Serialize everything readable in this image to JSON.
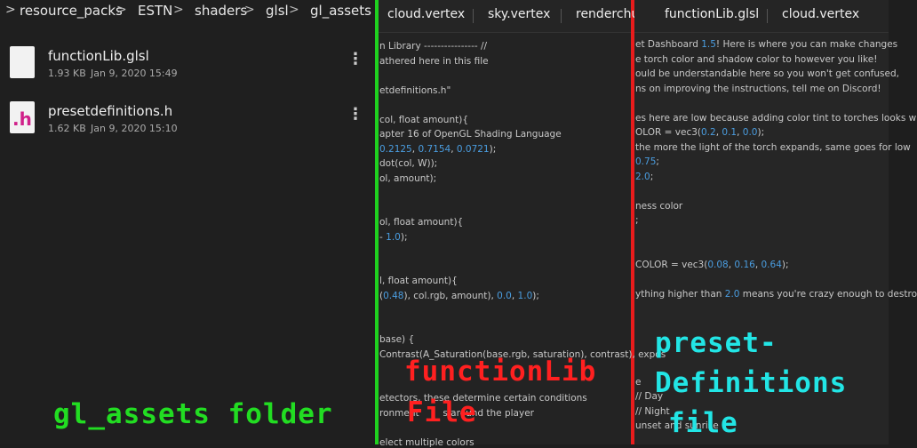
{
  "breadcrumb": [
    "resource_packs",
    "ESTN",
    "shaders",
    "glsl",
    "gl_assets"
  ],
  "files": [
    {
      "name": "functionLib.glsl",
      "size": "1.93 KB",
      "date": "Jan 9, 2020 15:49"
    },
    {
      "name": "presetdefinitions.h",
      "size": "1.62 KB",
      "date": "Jan 9, 2020 15:10",
      "icon": ".h"
    }
  ],
  "editor_middle": {
    "tabs": [
      "cloud.vertex",
      "sky.vertex",
      "renderchu"
    ],
    "lines": [
      "n Library ---------------- //",
      "athered here in this file",
      "etdefinitions.h\"",
      "col, float amount){",
      "apter 16 of OpenGL Shading Language",
      "0.2125, 0.7154, 0.0721);",
      "dot(col, W));",
      "ol, amount);",
      "ol, float amount){",
      "- 1.0);",
      "l, float amount){",
      "(0.48), col.rgb, amount), 0.0, 1.0);",
      "base) {",
      "Contrast(A_Saturation(base.rgb, saturation), contrast), expos",
      "etectors, these determine certain conditions",
      "ronment        s around the player",
      "elect multiple colors"
    ]
  },
  "editor_right": {
    "tabs": [
      "functionLib.glsl",
      "cloud.vertex"
    ],
    "lines": [
      "et Dashboard 1.5! Here is where you can make changes",
      "e torch color and shadow color to however you like!",
      "ould be understandable here so you won't get confused,",
      "ns on improving the instructions, tell me on Discord!",
      "es here are low because adding color tint to torches looks w",
      "OLOR = vec3(0.2, 0.1, 0.0);",
      "the more the light of the torch expands, same goes for low",
      "0.75;",
      "2.0;",
      "ness color",
      ";",
      "COLOR = vec3(0.08, 0.16, 0.64);",
      "ything higher than 2.0 means you're crazy enough to destro",
      "e",
      "// Day",
      "// Night",
      "unset and sunrise"
    ]
  },
  "annotations": {
    "folder": "gl_assets folder",
    "function_lib": [
      "functionLib",
      "File"
    ],
    "preset": [
      "preset-",
      "Definitions",
      "file"
    ]
  }
}
